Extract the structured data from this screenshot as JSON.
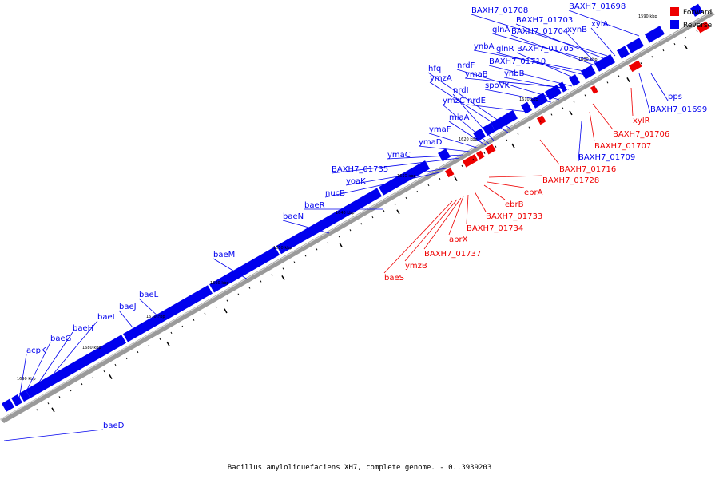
{
  "caption": "Bacillus amyloliquefaciens XH7, complete genome. - 0..3939203",
  "legend": [
    {
      "name": "Forward",
      "color": "#ee0000"
    },
    {
      "name": "Reverse",
      "color": "#0000ee"
    }
  ],
  "colors": {
    "forward": "#ee0000",
    "reverse": "#0000ee",
    "axis": "#999999"
  },
  "scale_labels": [
    "1590 kbp",
    "1600 kbp",
    "1610 kbp",
    "1620 kbp",
    "1630 kbp",
    "1640 kbp",
    "1650 kbp",
    "1660 kbp",
    "1670 kbp",
    "1680 kbp",
    "1690 kbp"
  ],
  "reverse_labels": [
    "BAXH7_01698",
    "BAXH7_01708",
    "BAXH7_01703",
    "glnA",
    "BAXH7_01704",
    "xynB",
    "xylA",
    "ynbA",
    "glnR",
    "BAXH7_01705",
    "nrdF",
    "BAXH7_01710",
    "hfq",
    "ymzA",
    "ymaB",
    "ynbB",
    "nrdI",
    "spoVK",
    "ymzC",
    "nrdE",
    "miaA",
    "ymaF",
    "ymaD",
    "ymaC",
    "BAXH7_01735",
    "yoaK",
    "nucB",
    "baeR",
    "baeN",
    "baeM",
    "baeL",
    "baeJ",
    "baeI",
    "baeH",
    "baeG",
    "acpK",
    "baeD",
    "pps",
    "BAXH7_01699",
    "BAXH7_01709"
  ],
  "forward_labels": [
    "xylR",
    "BAXH7_01706",
    "BAXH7_01707",
    "BAXH7_01716",
    "BAXH7_01728",
    "ebrA",
    "ebrB",
    "BAXH7_01733",
    "BAXH7_01734",
    "aprX",
    "BAXH7_01737",
    "ymzB",
    "baeS"
  ]
}
